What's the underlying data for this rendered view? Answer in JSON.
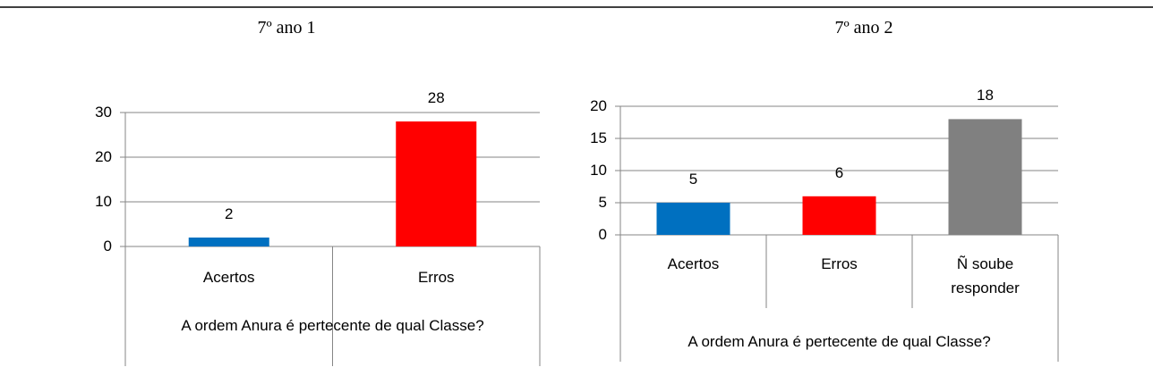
{
  "chart_data": [
    {
      "type": "bar",
      "title": "7º ano 1",
      "x_label": "A ordem Anura é pertecente de qual Classe?",
      "categories": [
        "Acertos",
        "Erros"
      ],
      "values": [
        2,
        28
      ],
      "colors": [
        "#0070c0",
        "#ff0000"
      ],
      "ylim": [
        0,
        30
      ],
      "yticks": [
        0,
        10,
        20,
        30
      ],
      "grid": true
    },
    {
      "type": "bar",
      "title": "7º ano 2",
      "x_label": "A ordem Anura é pertecente de qual Classe?",
      "categories": [
        "Acertos",
        "Erros",
        "Ñ soube responder"
      ],
      "values": [
        5,
        6,
        18
      ],
      "colors": [
        "#0070c0",
        "#ff0000",
        "#808080"
      ],
      "ylim": [
        0,
        20
      ],
      "yticks": [
        0,
        5,
        10,
        15,
        20
      ],
      "grid": true
    }
  ]
}
